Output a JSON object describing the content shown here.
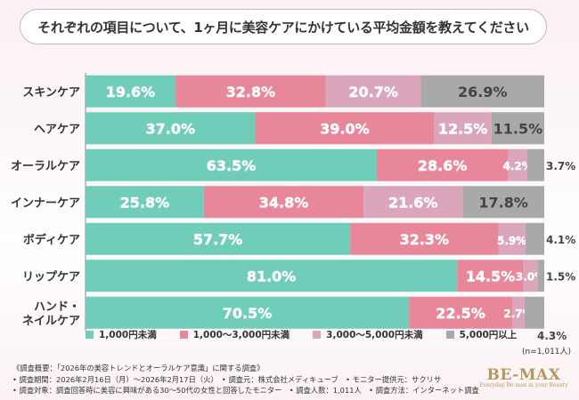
{
  "title": "それぞれの項目について、1ヶ月に美容ケアにかけている平均金額を教えてください",
  "chart_data": {
    "type": "bar",
    "stacked": true,
    "orientation": "horizontal",
    "percent_axis": true,
    "categories": [
      "スキンケア",
      "ヘアケア",
      "オーラルケア",
      "インナーケア",
      "ボディケア",
      "リップケア",
      "ハンド・\nネイルケア"
    ],
    "series": [
      {
        "name": "1,000円未満",
        "color": "#6fcdb9",
        "values": [
          19.6,
          37.0,
          63.5,
          25.8,
          57.7,
          81.0,
          70.5
        ]
      },
      {
        "name": "1,000〜3,000円未満",
        "color": "#e8869a",
        "values": [
          32.8,
          39.0,
          28.6,
          34.8,
          32.3,
          14.5,
          22.5
        ]
      },
      {
        "name": "3,000〜5,000円未満",
        "color": "#dba6bb",
        "values": [
          20.7,
          12.5,
          4.2,
          21.6,
          5.9,
          3.0,
          2.7
        ]
      },
      {
        "name": "5,000円以上",
        "color": "#a9a9a9",
        "values": [
          26.9,
          11.5,
          3.7,
          17.8,
          4.1,
          1.5,
          4.3
        ]
      }
    ],
    "value_labels": [
      [
        "19.6%",
        "32.8%",
        "20.7%",
        "26.9%"
      ],
      [
        "37.0%",
        "39.0%",
        "12.5%",
        "11.5%"
      ],
      [
        "63.5%",
        "28.6%",
        "4.2%",
        "3.7%"
      ],
      [
        "25.8%",
        "34.8%",
        "21.6%",
        "17.8%"
      ],
      [
        "57.7%",
        "32.3%",
        "5.9%",
        "4.1%"
      ],
      [
        "81.0%",
        "14.5%",
        "3.0%",
        "1.5%"
      ],
      [
        "70.5%",
        "22.5%",
        "2.7%",
        "4.3%"
      ]
    ],
    "legend_position": "bottom",
    "grid": false
  },
  "legend": [
    {
      "label": "1,000円未満",
      "color": "#6fcdb9"
    },
    {
      "label": "1,000〜3,000円未満",
      "color": "#e8869a"
    },
    {
      "label": "3,000〜5,000円未満",
      "color": "#dba6bb"
    },
    {
      "label": "5,000円以上",
      "color": "#a9a9a9"
    }
  ],
  "n_note": "(n=1,011人)",
  "footer": {
    "line1": "《調査概要：「2026年の美容トレンドとオーラルケア意識」に関する調査》",
    "line2": "• 調査期間：2026年2月16日（月）〜2026年2月17日（火）　• 調査元：株式会社メディキューブ　• モニター提供元：サクリサ",
    "line3": "• 調査対象：調査回答時に美容に興味がある30〜50代の女性と回答したモニター　• 調査人数：1,011人　• 調査方法：インターネット調査"
  },
  "logo": {
    "main": "BE-MAX",
    "sub": "Everyday Be max in your Beauty"
  }
}
